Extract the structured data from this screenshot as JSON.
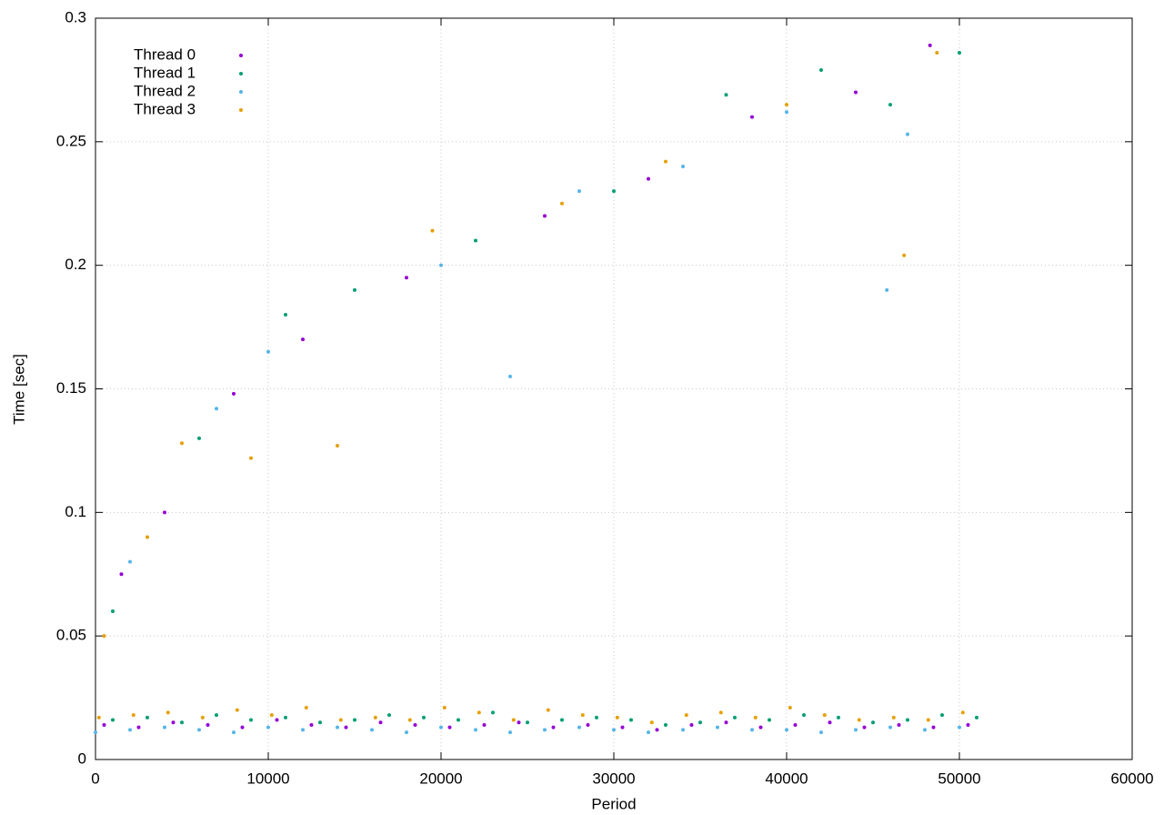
{
  "chart_data": {
    "type": "scatter",
    "xlabel": "Period",
    "ylabel": "Time [sec]",
    "xlim": [
      0,
      60000
    ],
    "xticks": [
      0,
      10000,
      20000,
      30000,
      40000,
      50000,
      60000
    ],
    "ylim": [
      0,
      0.3
    ],
    "yticks": [
      0,
      0.05,
      0.1,
      0.15,
      0.2,
      0.25,
      0.3
    ],
    "grid": true,
    "legend": "top-left",
    "series": [
      {
        "name": "Thread 0",
        "color": "#9400d3",
        "x": [
          500,
          2500,
          4500,
          6500,
          8500,
          10500,
          12500,
          14500,
          16500,
          18500,
          20500,
          22500,
          24500,
          26500,
          28500,
          30500,
          32500,
          34500,
          36500,
          38500,
          40500,
          42500,
          44500,
          46500,
          48500,
          50500,
          1500,
          4000,
          8000,
          12000,
          18000,
          26000,
          32000,
          38000,
          44000,
          48300
        ],
        "values": [
          0.014,
          0.013,
          0.015,
          0.014,
          0.013,
          0.016,
          0.014,
          0.013,
          0.015,
          0.014,
          0.013,
          0.014,
          0.015,
          0.013,
          0.014,
          0.013,
          0.012,
          0.014,
          0.015,
          0.013,
          0.014,
          0.015,
          0.013,
          0.014,
          0.013,
          0.014,
          0.075,
          0.1,
          0.148,
          0.17,
          0.195,
          0.22,
          0.235,
          0.26,
          0.27,
          0.289
        ]
      },
      {
        "name": "Thread 1",
        "color": "#009e73",
        "x": [
          1000,
          3000,
          5000,
          7000,
          9000,
          11000,
          13000,
          15000,
          17000,
          19000,
          21000,
          23000,
          25000,
          27000,
          29000,
          31000,
          33000,
          35000,
          37000,
          39000,
          41000,
          43000,
          45000,
          47000,
          49000,
          51000,
          1000,
          6000,
          11000,
          15000,
          22000,
          30000,
          36500,
          42000,
          46000,
          50000
        ],
        "values": [
          0.016,
          0.017,
          0.015,
          0.018,
          0.016,
          0.017,
          0.015,
          0.016,
          0.018,
          0.017,
          0.016,
          0.019,
          0.015,
          0.016,
          0.017,
          0.016,
          0.014,
          0.015,
          0.017,
          0.016,
          0.018,
          0.017,
          0.015,
          0.016,
          0.018,
          0.017,
          0.06,
          0.13,
          0.18,
          0.19,
          0.21,
          0.23,
          0.269,
          0.279,
          0.265,
          0.286
        ]
      },
      {
        "name": "Thread 2",
        "color": "#56b4e9",
        "x": [
          0,
          2000,
          4000,
          6000,
          8000,
          10000,
          12000,
          14000,
          16000,
          18000,
          20000,
          22000,
          24000,
          26000,
          28000,
          30000,
          32000,
          34000,
          36000,
          38000,
          40000,
          42000,
          44000,
          46000,
          48000,
          50000,
          2000,
          7000,
          10000,
          20000,
          28000,
          34000,
          40000,
          47000,
          24000,
          45800
        ],
        "values": [
          0.011,
          0.012,
          0.013,
          0.012,
          0.011,
          0.013,
          0.012,
          0.013,
          0.012,
          0.011,
          0.013,
          0.012,
          0.011,
          0.012,
          0.013,
          0.012,
          0.011,
          0.012,
          0.013,
          0.012,
          0.012,
          0.011,
          0.012,
          0.013,
          0.012,
          0.013,
          0.08,
          0.142,
          0.165,
          0.2,
          0.23,
          0.24,
          0.262,
          0.253,
          0.155,
          0.19
        ]
      },
      {
        "name": "Thread 3",
        "color": "#e69f00",
        "x": [
          200,
          2200,
          4200,
          6200,
          8200,
          10200,
          12200,
          14200,
          16200,
          18200,
          20200,
          22200,
          24200,
          26200,
          28200,
          30200,
          32200,
          34200,
          36200,
          38200,
          40200,
          42200,
          44200,
          46200,
          48200,
          50200,
          500,
          3000,
          5000,
          9000,
          14000,
          19500,
          27000,
          33000,
          40000,
          48700,
          46800
        ],
        "values": [
          0.017,
          0.018,
          0.019,
          0.017,
          0.02,
          0.018,
          0.021,
          0.016,
          0.017,
          0.016,
          0.021,
          0.019,
          0.016,
          0.02,
          0.018,
          0.017,
          0.015,
          0.018,
          0.019,
          0.017,
          0.021,
          0.018,
          0.016,
          0.017,
          0.016,
          0.019,
          0.05,
          0.09,
          0.128,
          0.122,
          0.127,
          0.214,
          0.225,
          0.242,
          0.265,
          0.286,
          0.204
        ]
      }
    ]
  }
}
